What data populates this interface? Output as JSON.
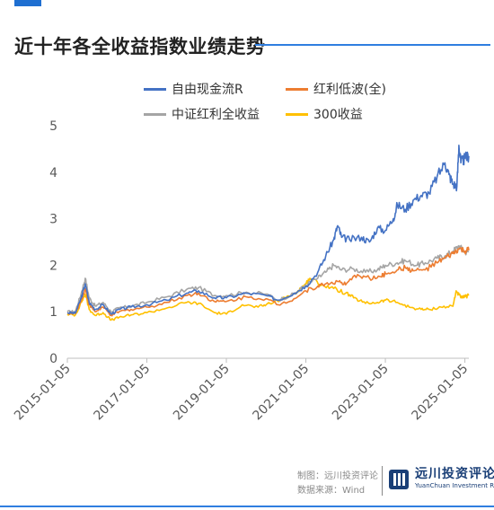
{
  "title": "近十年各全收益指数业绩走势",
  "chart_data": {
    "type": "line",
    "y_ticks": [
      "0",
      "1",
      "2",
      "3",
      "4",
      "5"
    ],
    "ylim": [
      0,
      5
    ],
    "x_ticks": [
      "2015-01-05",
      "2017-01-05",
      "2019-01-05",
      "2021-01-05",
      "2023-01-05",
      "2025-01-05"
    ],
    "x_tick_positions": [
      2015.0,
      2017.0,
      2019.0,
      2021.0,
      2023.0,
      2025.0
    ],
    "xlim": [
      2015.0,
      2025.1
    ],
    "grid": false,
    "legend_position": "top-left",
    "series": [
      {
        "name": "自由现金流R",
        "color": "#4472c4",
        "points": [
          [
            2015.0,
            0.98
          ],
          [
            2015.2,
            0.97
          ],
          [
            2015.35,
            1.3
          ],
          [
            2015.45,
            1.6
          ],
          [
            2015.55,
            1.2
          ],
          [
            2015.7,
            1.05
          ],
          [
            2015.9,
            1.15
          ],
          [
            2016.1,
            0.95
          ],
          [
            2016.3,
            1.05
          ],
          [
            2016.6,
            1.1
          ],
          [
            2017.0,
            1.15
          ],
          [
            2017.5,
            1.25
          ],
          [
            2018.0,
            1.4
          ],
          [
            2018.3,
            1.45
          ],
          [
            2018.7,
            1.3
          ],
          [
            2019.0,
            1.3
          ],
          [
            2019.5,
            1.4
          ],
          [
            2020.0,
            1.35
          ],
          [
            2020.3,
            1.25
          ],
          [
            2020.7,
            1.4
          ],
          [
            2021.0,
            1.55
          ],
          [
            2021.3,
            1.85
          ],
          [
            2021.5,
            2.2
          ],
          [
            2021.7,
            2.55
          ],
          [
            2021.8,
            2.85
          ],
          [
            2021.9,
            2.6
          ],
          [
            2022.1,
            2.55
          ],
          [
            2022.4,
            2.6
          ],
          [
            2022.6,
            2.5
          ],
          [
            2022.8,
            2.8
          ],
          [
            2023.0,
            2.75
          ],
          [
            2023.2,
            3.0
          ],
          [
            2023.3,
            3.3
          ],
          [
            2023.5,
            3.2
          ],
          [
            2023.7,
            3.4
          ],
          [
            2023.9,
            3.5
          ],
          [
            2024.1,
            3.55
          ],
          [
            2024.3,
            3.9
          ],
          [
            2024.5,
            4.2
          ],
          [
            2024.6,
            3.95
          ],
          [
            2024.7,
            3.75
          ],
          [
            2024.8,
            3.7
          ],
          [
            2024.85,
            4.58
          ],
          [
            2024.9,
            4.2
          ],
          [
            2025.0,
            4.3
          ],
          [
            2025.1,
            4.35
          ]
        ]
      },
      {
        "name": "红利低波(全)",
        "color": "#ed7d31",
        "points": [
          [
            2015.0,
            0.97
          ],
          [
            2015.2,
            0.96
          ],
          [
            2015.35,
            1.25
          ],
          [
            2015.45,
            1.5
          ],
          [
            2015.55,
            1.15
          ],
          [
            2015.7,
            1.0
          ],
          [
            2015.9,
            1.1
          ],
          [
            2016.1,
            0.92
          ],
          [
            2016.3,
            1.0
          ],
          [
            2016.6,
            1.05
          ],
          [
            2017.0,
            1.1
          ],
          [
            2017.5,
            1.2
          ],
          [
            2018.0,
            1.35
          ],
          [
            2018.3,
            1.4
          ],
          [
            2018.7,
            1.22
          ],
          [
            2019.0,
            1.22
          ],
          [
            2019.5,
            1.32
          ],
          [
            2020.0,
            1.28
          ],
          [
            2020.3,
            1.15
          ],
          [
            2020.7,
            1.28
          ],
          [
            2021.0,
            1.45
          ],
          [
            2021.3,
            1.55
          ],
          [
            2021.5,
            1.6
          ],
          [
            2021.8,
            1.65
          ],
          [
            2022.0,
            1.58
          ],
          [
            2022.3,
            1.8
          ],
          [
            2022.6,
            1.72
          ],
          [
            2022.9,
            1.75
          ],
          [
            2023.0,
            1.82
          ],
          [
            2023.3,
            1.9
          ],
          [
            2023.5,
            1.95
          ],
          [
            2023.7,
            1.88
          ],
          [
            2024.0,
            1.9
          ],
          [
            2024.3,
            2.05
          ],
          [
            2024.5,
            2.15
          ],
          [
            2024.7,
            2.25
          ],
          [
            2024.85,
            2.35
          ],
          [
            2025.0,
            2.3
          ],
          [
            2025.1,
            2.32
          ]
        ]
      },
      {
        "name": "中证红利全收益",
        "color": "#a5a5a5",
        "points": [
          [
            2015.0,
            1.0
          ],
          [
            2015.2,
            1.0
          ],
          [
            2015.35,
            1.4
          ],
          [
            2015.45,
            1.72
          ],
          [
            2015.55,
            1.3
          ],
          [
            2015.7,
            1.12
          ],
          [
            2015.9,
            1.2
          ],
          [
            2016.1,
            1.0
          ],
          [
            2016.3,
            1.08
          ],
          [
            2016.6,
            1.12
          ],
          [
            2017.0,
            1.2
          ],
          [
            2017.5,
            1.32
          ],
          [
            2018.0,
            1.48
          ],
          [
            2018.3,
            1.52
          ],
          [
            2018.7,
            1.35
          ],
          [
            2019.0,
            1.35
          ],
          [
            2019.5,
            1.42
          ],
          [
            2020.0,
            1.38
          ],
          [
            2020.3,
            1.25
          ],
          [
            2020.7,
            1.38
          ],
          [
            2021.0,
            1.58
          ],
          [
            2021.3,
            1.72
          ],
          [
            2021.5,
            1.85
          ],
          [
            2021.7,
            2.0
          ],
          [
            2021.9,
            1.9
          ],
          [
            2022.2,
            1.92
          ],
          [
            2022.5,
            1.85
          ],
          [
            2022.8,
            1.9
          ],
          [
            2023.0,
            2.0
          ],
          [
            2023.3,
            2.05
          ],
          [
            2023.5,
            2.1
          ],
          [
            2023.8,
            2.0
          ],
          [
            2024.0,
            2.05
          ],
          [
            2024.3,
            2.15
          ],
          [
            2024.5,
            2.2
          ],
          [
            2024.7,
            2.3
          ],
          [
            2024.85,
            2.42
          ],
          [
            2025.0,
            2.28
          ],
          [
            2025.1,
            2.3
          ]
        ]
      },
      {
        "name": "300收益",
        "color": "#ffc000",
        "points": [
          [
            2015.0,
            0.95
          ],
          [
            2015.2,
            0.93
          ],
          [
            2015.35,
            1.2
          ],
          [
            2015.45,
            1.38
          ],
          [
            2015.55,
            1.05
          ],
          [
            2015.7,
            0.92
          ],
          [
            2015.9,
            0.98
          ],
          [
            2016.1,
            0.82
          ],
          [
            2016.3,
            0.88
          ],
          [
            2016.6,
            0.93
          ],
          [
            2017.0,
            0.98
          ],
          [
            2017.5,
            1.08
          ],
          [
            2018.0,
            1.2
          ],
          [
            2018.3,
            1.18
          ],
          [
            2018.7,
            0.98
          ],
          [
            2019.0,
            0.95
          ],
          [
            2019.4,
            1.15
          ],
          [
            2019.8,
            1.1
          ],
          [
            2020.0,
            1.15
          ],
          [
            2020.5,
            1.3
          ],
          [
            2020.8,
            1.45
          ],
          [
            2021.0,
            1.6
          ],
          [
            2021.1,
            1.72
          ],
          [
            2021.4,
            1.58
          ],
          [
            2021.7,
            1.5
          ],
          [
            2022.0,
            1.4
          ],
          [
            2022.2,
            1.3
          ],
          [
            2022.5,
            1.18
          ],
          [
            2022.8,
            1.2
          ],
          [
            2023.0,
            1.25
          ],
          [
            2023.3,
            1.2
          ],
          [
            2023.6,
            1.1
          ],
          [
            2023.9,
            1.05
          ],
          [
            2024.1,
            1.05
          ],
          [
            2024.4,
            1.1
          ],
          [
            2024.7,
            1.12
          ],
          [
            2024.78,
            1.45
          ],
          [
            2024.9,
            1.3
          ],
          [
            2025.0,
            1.32
          ],
          [
            2025.1,
            1.35
          ]
        ]
      }
    ]
  },
  "footer": {
    "maker": "制图：远川投资评论",
    "source": "数据来源：Wind",
    "logo_cn": "远川投资评论",
    "logo_en": "YuanChuan Investment Review",
    "accent_color": "#1f6fd1"
  }
}
